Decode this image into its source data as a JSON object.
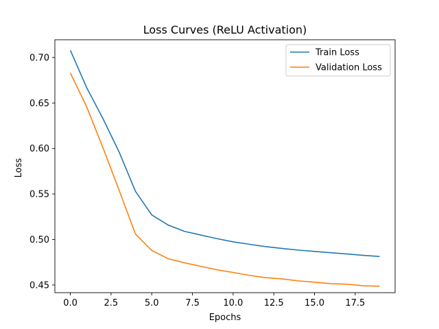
{
  "chart_data": {
    "type": "line",
    "title": "Loss Curves (ReLU Activation)",
    "xlabel": "Epochs",
    "ylabel": "Loss",
    "xlim": [
      -0.95,
      19.95
    ],
    "ylim": [
      0.4416,
      0.7195
    ],
    "xticks": [
      0.0,
      2.5,
      5.0,
      7.5,
      10.0,
      12.5,
      15.0,
      17.5
    ],
    "xtick_labels": [
      "0.0",
      "2.5",
      "5.0",
      "7.5",
      "10.0",
      "12.5",
      "15.0",
      "17.5"
    ],
    "yticks": [
      0.45,
      0.5,
      0.55,
      0.6,
      0.65,
      0.7
    ],
    "ytick_labels": [
      "0.45",
      "0.50",
      "0.55",
      "0.60",
      "0.65",
      "0.70"
    ],
    "grid": false,
    "legend_position": "top-right",
    "x": [
      0,
      1,
      2,
      3,
      4,
      5,
      6,
      7,
      8,
      9,
      10,
      11,
      12,
      13,
      14,
      15,
      16,
      17,
      18,
      19
    ],
    "series": [
      {
        "name": "Train Loss",
        "color": "#1f77b4",
        "values": [
          0.708,
          0.667,
          0.633,
          0.596,
          0.553,
          0.527,
          0.516,
          0.509,
          0.505,
          0.501,
          0.4975,
          0.4948,
          0.4922,
          0.4902,
          0.4884,
          0.4869,
          0.4855,
          0.4841,
          0.4826,
          0.4814
        ]
      },
      {
        "name": "Validation Loss",
        "color": "#ff7f0e",
        "values": [
          0.683,
          0.646,
          0.601,
          0.554,
          0.506,
          0.488,
          0.479,
          0.4745,
          0.4706,
          0.4668,
          0.4638,
          0.4606,
          0.4581,
          0.4567,
          0.4546,
          0.4531,
          0.4515,
          0.4509,
          0.4492,
          0.4487
        ]
      }
    ]
  }
}
